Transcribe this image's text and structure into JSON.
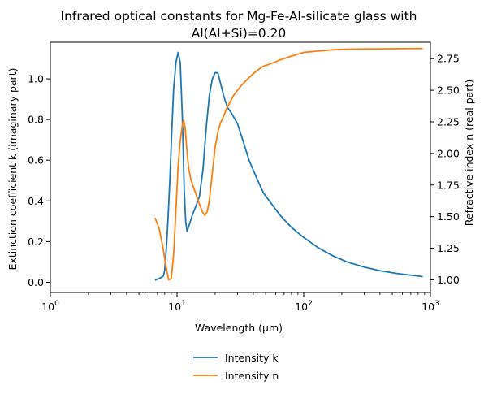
{
  "chart_data": {
    "type": "line",
    "title_lines": [
      "Infrared optical constants for Mg-Fe-Al-silicate glass with",
      "Al(Al+Si)=0.20"
    ],
    "xlabel": "Wavelength (μm)",
    "ylabel_left": "Extinction coefficient k (imaginary part)",
    "ylabel_right": "Refractive index n (real part)",
    "x_scale": "log",
    "xlim": [
      1,
      1000
    ],
    "ylim_left": [
      -0.05,
      1.18
    ],
    "ylim_right": [
      0.9,
      2.88
    ],
    "x_ticks": [
      {
        "value": 1,
        "base": "10",
        "exp": "0"
      },
      {
        "value": 10,
        "base": "10",
        "exp": "1"
      },
      {
        "value": 100,
        "base": "10",
        "exp": "2"
      },
      {
        "value": 1000,
        "base": "10",
        "exp": "3"
      }
    ],
    "y_ticks_left": [
      {
        "value": 0.0,
        "label": "0.0"
      },
      {
        "value": 0.2,
        "label": "0.2"
      },
      {
        "value": 0.4,
        "label": "0.4"
      },
      {
        "value": 0.6,
        "label": "0.6"
      },
      {
        "value": 0.8,
        "label": "0.8"
      },
      {
        "value": 1.0,
        "label": "1.0"
      }
    ],
    "y_ticks_right": [
      {
        "value": 1.0,
        "label": "1.00"
      },
      {
        "value": 1.25,
        "label": "1.25"
      },
      {
        "value": 1.5,
        "label": "1.50"
      },
      {
        "value": 1.75,
        "label": "1.75"
      },
      {
        "value": 2.0,
        "label": "2.00"
      },
      {
        "value": 2.25,
        "label": "2.25"
      },
      {
        "value": 2.5,
        "label": "2.50"
      },
      {
        "value": 2.75,
        "label": "2.75"
      }
    ],
    "grid": false,
    "legend_position": "below-center",
    "series": [
      {
        "name": "Intensity k",
        "axis": "left",
        "color": "#1f77b4",
        "x": [
          6.7,
          7.3,
          7.8,
          8.0,
          8.3,
          8.5,
          8.8,
          9.1,
          9.4,
          9.8,
          10.2,
          10.6,
          11.0,
          11.4,
          11.7,
          12.0,
          12.3,
          12.6,
          13.2,
          14.0,
          15.0,
          16.0,
          17.0,
          18.0,
          19.0,
          20.0,
          21.0,
          22.0,
          23.5,
          25.0,
          27.0,
          30.0,
          33.0,
          37.0,
          42.0,
          48.0,
          55.0,
          65.0,
          80.0,
          100.0,
          130.0,
          170.0,
          220.0,
          300.0,
          400.0,
          550.0,
          700.0,
          870.0
        ],
        "y": [
          0.01,
          0.02,
          0.03,
          0.06,
          0.2,
          0.32,
          0.52,
          0.75,
          0.95,
          1.08,
          1.13,
          1.08,
          0.82,
          0.45,
          0.3,
          0.25,
          0.27,
          0.29,
          0.33,
          0.37,
          0.42,
          0.55,
          0.76,
          0.92,
          1.0,
          1.03,
          1.03,
          0.98,
          0.91,
          0.86,
          0.83,
          0.78,
          0.7,
          0.6,
          0.52,
          0.44,
          0.39,
          0.33,
          0.27,
          0.22,
          0.17,
          0.13,
          0.1,
          0.075,
          0.057,
          0.043,
          0.035,
          0.028
        ]
      },
      {
        "name": "Intensity n",
        "axis": "right",
        "color": "#ff7f0e",
        "x": [
          6.7,
          7.2,
          7.7,
          8.2,
          8.6,
          9.0,
          9.4,
          9.8,
          10.2,
          10.6,
          11.0,
          11.3,
          11.6,
          11.9,
          12.3,
          12.8,
          13.4,
          14.2,
          15.0,
          16.0,
          16.6,
          17.3,
          18.0,
          19.0,
          20.0,
          21.0,
          22.0,
          23.0,
          24.5,
          26.0,
          28.0,
          30.0,
          33.0,
          37.0,
          42.0,
          48.0,
          55.0,
          65.0,
          80.0,
          100.0,
          130.0,
          170.0,
          220.0,
          300.0,
          400.0,
          550.0,
          700.0,
          870.0
        ],
        "y": [
          1.49,
          1.41,
          1.27,
          1.1,
          1.0,
          1.01,
          1.2,
          1.55,
          1.9,
          2.1,
          2.22,
          2.26,
          2.2,
          2.05,
          1.9,
          1.8,
          1.74,
          1.67,
          1.6,
          1.53,
          1.51,
          1.54,
          1.63,
          1.85,
          2.05,
          2.17,
          2.24,
          2.28,
          2.35,
          2.4,
          2.46,
          2.5,
          2.55,
          2.6,
          2.65,
          2.69,
          2.71,
          2.74,
          2.77,
          2.8,
          2.81,
          2.82,
          2.825,
          2.827,
          2.828,
          2.829,
          2.83,
          2.83
        ]
      }
    ]
  }
}
